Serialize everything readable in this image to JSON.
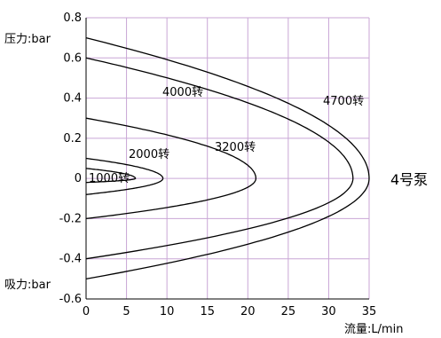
{
  "chart_data": {
    "type": "line",
    "pressure_label": "压力:bar",
    "suction_label": "吸力:bar",
    "xlabel": "流量:L/min",
    "pump_label": "4号泵",
    "xlim": [
      0,
      35
    ],
    "ylim": [
      -0.6,
      0.8
    ],
    "xticks": [
      0,
      5,
      10,
      15,
      20,
      25,
      30,
      35
    ],
    "yticks": [
      0.8,
      0.6,
      0.4,
      0.2,
      0,
      -0.2,
      -0.4,
      -0.6
    ],
    "ytick_labels": [
      "0.8",
      "0.6",
      "0.4",
      "0.2",
      "0",
      "-0.2",
      "-0.4",
      "-0.6"
    ],
    "grid": true,
    "grid_color": "#c9a6d6",
    "line_color": "#000000",
    "series": [
      {
        "name": "1000转",
        "max_flow": 9.5,
        "upper_y0": 0.1,
        "lower_y0": -0.08
      },
      {
        "name": "2000转",
        "max_flow": 21,
        "upper_y0": 0.3,
        "lower_y0": -0.2
      },
      {
        "name": "3200转",
        "max_flow": 33,
        "upper_y0": 0.6,
        "lower_y0": -0.4
      },
      {
        "name": "4000转",
        "max_flow": 35,
        "upper_y0": 0.7,
        "lower_y0": -0.5
      },
      {
        "name": "4700转",
        "max_flow": 6.1,
        "upper_y0": 0.05,
        "lower_y0": -0.02
      }
    ]
  }
}
